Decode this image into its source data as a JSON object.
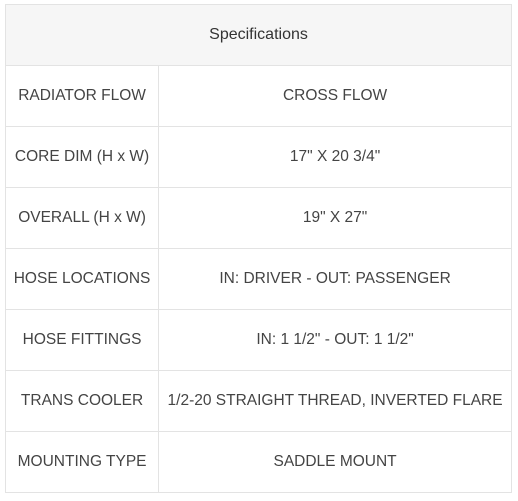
{
  "title": "Specifications",
  "rows": [
    {
      "label": "RADIATOR FLOW",
      "value": "CROSS FLOW"
    },
    {
      "label": "CORE DIM (H x W)",
      "value": "17\" X 20 3/4\""
    },
    {
      "label": "OVERALL (H x W)",
      "value": "19\" X 27\""
    },
    {
      "label": "HOSE LOCATIONS",
      "value": "IN: DRIVER - OUT: PASSENGER"
    },
    {
      "label": "HOSE FITTINGS",
      "value": "IN: 1 1/2\" - OUT: 1 1/2\""
    },
    {
      "label": "TRANS COOLER",
      "value": "1/2-20 STRAIGHT THREAD, INVERTED FLARE"
    },
    {
      "label": "MOUNTING TYPE",
      "value": "SADDLE MOUNT"
    }
  ]
}
